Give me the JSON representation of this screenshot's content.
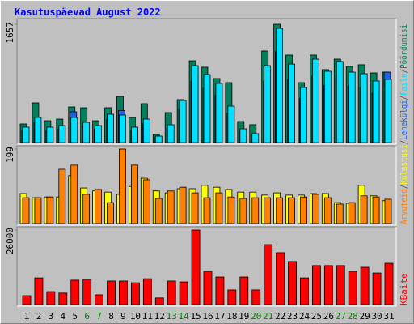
{
  "legend_separator": "/",
  "chart_data": [
    {
      "type": "bar",
      "title": "Kasutuspäevad August 2022",
      "ylim": [
        0,
        1657
      ],
      "yticks": [
        1657
      ],
      "series": [
        {
          "name": "Pöördumisi",
          "color": "#00805c",
          "values": [
            261,
            556,
            306,
            329,
            499,
            488,
            306,
            488,
            647,
            352,
            545,
            114,
            420,
            602,
            1146,
            1056,
            897,
            840,
            295,
            250,
            1283,
            1657,
            1226,
            840,
            1226,
            1022,
            1169,
            1067,
            1090,
            976,
            987
          ]
        },
        {
          "name": "Faile",
          "color": "#00e0ff",
          "values": [
            216,
            352,
            216,
            238,
            352,
            284,
            238,
            397,
            386,
            216,
            329,
            91,
            250,
            590,
            1078,
            953,
            829,
            511,
            193,
            125,
            1078,
            1600,
            1100,
            772,
            1169,
            999,
            1135,
            987,
            965,
            863,
            885
          ]
        },
        {
          "name": "Lehekülgi",
          "color": "#2060f0",
          "values": [
            170,
            280,
            170,
            190,
            431,
            230,
            190,
            320,
            450,
            170,
            260,
            70,
            200,
            470,
            860,
            760,
            660,
            410,
            150,
            100,
            860,
            1280,
            880,
            620,
            930,
            800,
            900,
            790,
            770,
            690,
            987
          ]
        }
      ]
    },
    {
      "type": "bar",
      "ylim": [
        0,
        199
      ],
      "yticks": [
        199
      ],
      "series": [
        {
          "name": "Külastusi",
          "color": "#ffff00",
          "values": [
            80,
            69,
            71,
            71,
            128,
            95,
            87,
            84,
            78,
            99,
            121,
            87,
            82,
            93,
            93,
            102,
            97,
            91,
            84,
            84,
            76,
            82,
            76,
            76,
            80,
            80,
            56,
            54,
            102,
            74,
            61
          ]
        },
        {
          "name": "Arvuteid",
          "color": "#ff8000",
          "values": [
            69,
            69,
            71,
            145,
            156,
            78,
            91,
            56,
            199,
            156,
            117,
            67,
            87,
            97,
            82,
            69,
            82,
            71,
            67,
            69,
            69,
            69,
            69,
            71,
            78,
            69,
            52,
            56,
            74,
            71,
            65
          ]
        }
      ]
    },
    {
      "type": "bar",
      "ylim": [
        0,
        26000
      ],
      "yticks": [
        26000
      ],
      "categories": [
        "1",
        "2",
        "3",
        "4",
        "5",
        "6",
        "7",
        "8",
        "9",
        "10",
        "11",
        "12",
        "13",
        "14",
        "15",
        "16",
        "17",
        "18",
        "19",
        "20",
        "21",
        "22",
        "23",
        "24",
        "25",
        "26",
        "27",
        "28",
        "29",
        "30",
        "31"
      ],
      "label_colors": [
        "#000000",
        "#000000",
        "#000000",
        "#000000",
        "#000000",
        "#008000",
        "#008000",
        "#000000",
        "#000000",
        "#000000",
        "#000000",
        "#000000",
        "#008000",
        "#008000",
        "#000000",
        "#000000",
        "#000000",
        "#000000",
        "#000000",
        "#008000",
        "#008000",
        "#000000",
        "#000000",
        "#000000",
        "#000000",
        "#000000",
        "#008000",
        "#008000",
        "#000000",
        "#000000",
        "#000000"
      ],
      "series": [
        {
          "name": "KBaite",
          "color": "#ff0000",
          "values": [
            3100,
            9300,
            4500,
            4000,
            8500,
            8800,
            3400,
            8200,
            8200,
            7600,
            9000,
            2300,
            8200,
            7900,
            26000,
            11600,
            9600,
            5100,
            9600,
            5100,
            20900,
            18100,
            15000,
            9300,
            13600,
            13600,
            13600,
            11600,
            13000,
            11000,
            14400
          ]
        }
      ]
    }
  ]
}
